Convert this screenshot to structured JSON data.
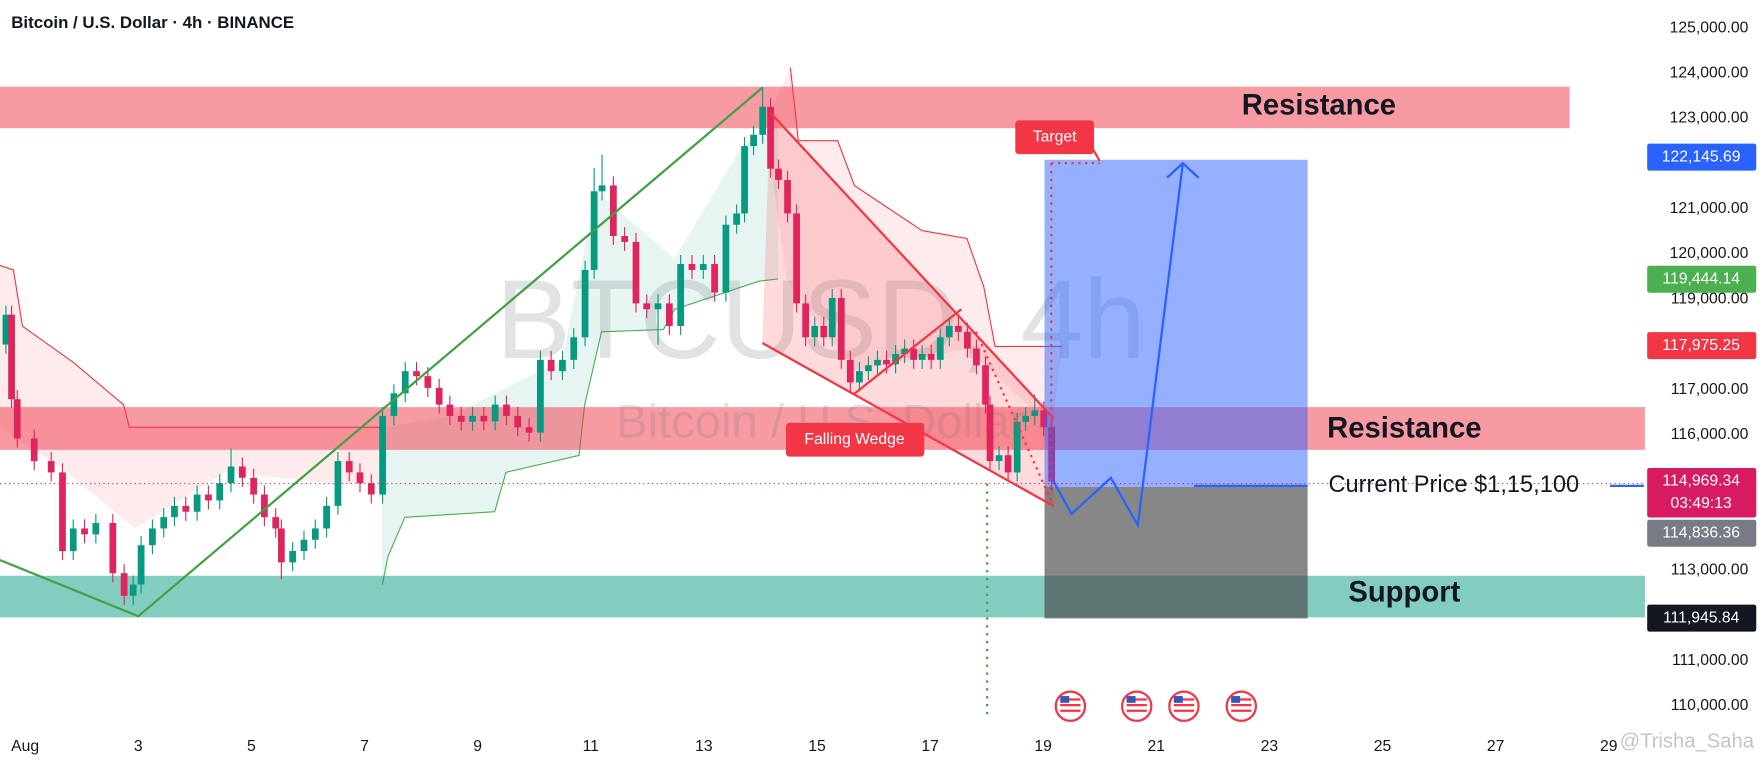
{
  "chart_data": {
    "type": "candlestick",
    "title": "Bitcoin / U.S. Dollar · 4h · BINANCE",
    "watermark": [
      "BTCUSD, 4h",
      "Bitcoin / U.S. Dollar"
    ],
    "author": "@Trisha_Saha",
    "annotations": [
      "Resistance",
      "Resistance",
      "Support",
      "Current Price $1,15,100",
      "Target",
      "Falling Wedge"
    ],
    "up_color": "#089981",
    "down_color": "#e0245e",
    "grid": false,
    "xlim": [
      0.555,
      29.6
    ],
    "xticks": [
      {
        "value": 1,
        "label": "Aug"
      },
      3,
      5,
      7,
      9,
      11,
      13,
      15,
      17,
      19,
      21,
      23,
      25,
      27,
      29
    ],
    "ylim": [
      109500,
      125620
    ],
    "yticks": [
      {
        "value": 125000,
        "label": "125,000.00"
      },
      {
        "value": 124000,
        "label": "124,000.00"
      },
      {
        "value": 123000,
        "label": "123,000.00"
      },
      {
        "value": 121000,
        "label": "121,000.00"
      },
      {
        "value": 120000,
        "label": "120,000.00"
      },
      {
        "value": 119000,
        "label": "119,000.00"
      },
      {
        "value": 117000,
        "label": "117,000.00"
      },
      {
        "value": 116000,
        "label": "116,000.00"
      },
      {
        "value": 113000,
        "label": "113,000.00"
      },
      {
        "value": 111000,
        "label": "111,000.00"
      },
      {
        "value": 110000,
        "label": "110,000.00"
      }
    ],
    "price_markers": [
      {
        "value": 122145.69,
        "label": "122,145.69",
        "color": "#2962ff"
      },
      {
        "value": 119444.14,
        "label": "119,444.14",
        "color": "#4caf50"
      },
      {
        "value": 117975.25,
        "label": "117,975.25",
        "color": "#f23645"
      },
      {
        "value": 114969.34,
        "label": "114,969.34",
        "color": "#d81b60"
      },
      {
        "value": 114836.36,
        "label": "114,836.36",
        "color": "#787b86"
      },
      {
        "value": 111945.84,
        "label": "111,945.84",
        "color": "#131722"
      }
    ],
    "countdown": "03:49:13",
    "x": [
      0.66,
      0.76,
      0.86,
      1.16,
      1.46,
      1.66,
      1.85,
      2.05,
      2.25,
      2.55,
      2.75,
      2.91,
      3.05,
      3.25,
      3.45,
      3.64,
      3.84,
      4.04,
      4.24,
      4.44,
      4.64,
      4.84,
      5.04,
      5.23,
      5.43,
      5.53,
      5.73,
      5.93,
      6.13,
      6.33,
      6.53,
      6.73,
      6.92,
      7.12,
      7.32,
      7.52,
      7.72,
      7.92,
      8.12,
      8.32,
      8.51,
      8.71,
      8.91,
      9.11,
      9.31,
      9.51,
      9.71,
      9.91,
      10.11,
      10.3,
      10.5,
      10.7,
      10.9,
      11.06,
      11.2,
      11.4,
      11.6,
      11.8,
      11.99,
      12.19,
      12.39,
      12.59,
      12.79,
      12.99,
      13.19,
      13.39,
      13.58,
      13.72,
      13.88,
      14.04,
      14.18,
      14.32,
      14.48,
      14.64,
      14.8,
      14.96,
      15.12,
      15.27,
      15.43,
      15.59,
      15.75,
      15.91,
      16.07,
      16.23,
      16.39,
      16.55,
      16.71,
      16.86,
      17.02,
      17.18,
      17.34,
      17.5,
      17.66,
      17.82,
      17.98,
      18.06,
      18.22,
      18.38,
      18.54,
      18.69,
      18.85,
      19.01,
      19.15
    ],
    "open": [
      118000,
      118660,
      116790,
      115920,
      115420,
      115170,
      113430,
      113930,
      113800,
      114050,
      112940,
      112440,
      112690,
      113560,
      113930,
      114180,
      114430,
      114300,
      114680,
      114550,
      114930,
      115300,
      115050,
      114680,
      114180,
      113930,
      113180,
      113430,
      113680,
      113930,
      114430,
      115420,
      115170,
      114930,
      114680,
      116420,
      116920,
      117410,
      117300,
      117040,
      116670,
      116420,
      116290,
      116420,
      116300,
      116670,
      116420,
      116170,
      116050,
      117660,
      117410,
      117660,
      118160,
      119650,
      121390,
      121520,
      120400,
      120270,
      118910,
      118780,
      118910,
      118410,
      119780,
      119650,
      119780,
      119150,
      120650,
      120900,
      122390,
      122640,
      123260,
      121890,
      121640,
      120900,
      118910,
      118160,
      118410,
      118160,
      119030,
      117660,
      117160,
      117410,
      117540,
      117660,
      117560,
      117790,
      117910,
      117660,
      117790,
      117660,
      118160,
      118410,
      118280,
      117910,
      117540,
      116670,
      115420,
      115550,
      115170,
      116290,
      116420,
      116540,
      116170
    ],
    "high": [
      118860,
      118860,
      116990,
      116120,
      115620,
      115370,
      114130,
      114130,
      114250,
      114250,
      113140,
      112890,
      113760,
      114130,
      114380,
      114630,
      114630,
      114880,
      114880,
      115130,
      115700,
      115500,
      115250,
      114880,
      114380,
      114130,
      113630,
      113880,
      114130,
      114630,
      115620,
      115620,
      115370,
      115130,
      116620,
      117120,
      117610,
      117610,
      117500,
      117240,
      116870,
      116620,
      116620,
      116620,
      116870,
      116870,
      116620,
      116370,
      117860,
      117860,
      117860,
      118360,
      119850,
      121900,
      122200,
      121720,
      120600,
      120470,
      119110,
      119110,
      119110,
      119980,
      119980,
      119980,
      119980,
      120850,
      121100,
      122590,
      122840,
      123700,
      123460,
      122090,
      121840,
      121100,
      119110,
      118610,
      118610,
      119230,
      119230,
      117860,
      117610,
      117740,
      117860,
      117860,
      117990,
      118110,
      118110,
      117990,
      117990,
      118360,
      118610,
      118610,
      118480,
      118110,
      117740,
      116870,
      115750,
      115750,
      116490,
      116620,
      116900,
      116740,
      116370
    ],
    "low": [
      117800,
      116590,
      115720,
      115220,
      114970,
      113230,
      113230,
      113600,
      113600,
      112740,
      112240,
      112240,
      112490,
      113360,
      113730,
      113980,
      114100,
      114100,
      114350,
      114350,
      114730,
      114850,
      114480,
      113980,
      113730,
      112800,
      112980,
      113230,
      113480,
      113730,
      114230,
      114970,
      114730,
      114480,
      114480,
      116220,
      116720,
      117100,
      116840,
      116470,
      116220,
      116090,
      116090,
      116100,
      116100,
      116220,
      115970,
      115850,
      115850,
      117210,
      117210,
      117460,
      117960,
      119450,
      121190,
      120200,
      120070,
      118710,
      118580,
      118000,
      118210,
      118210,
      119450,
      119450,
      118950,
      118950,
      120450,
      120700,
      122190,
      122440,
      121690,
      121440,
      120700,
      118710,
      117960,
      117960,
      117960,
      117960,
      117460,
      116960,
      116960,
      117210,
      117340,
      117360,
      117360,
      117590,
      117460,
      117460,
      117460,
      117460,
      117960,
      118080,
      117710,
      117340,
      116470,
      115220,
      115220,
      114970,
      114970,
      116090,
      116220,
      115970,
      114770
    ],
    "close": [
      118660,
      116790,
      115920,
      115420,
      115170,
      113430,
      113930,
      113800,
      114050,
      112940,
      112440,
      112690,
      113560,
      113930,
      114180,
      114430,
      114300,
      114680,
      114550,
      114930,
      115300,
      115050,
      114680,
      114180,
      113930,
      113180,
      113430,
      113680,
      113930,
      114430,
      115420,
      115170,
      114930,
      114680,
      116420,
      116920,
      117410,
      117300,
      117040,
      116670,
      116420,
      116290,
      116420,
      116300,
      116670,
      116420,
      116170,
      116050,
      117660,
      117410,
      117660,
      118160,
      119650,
      121390,
      121520,
      120400,
      120270,
      118910,
      118780,
      118910,
      118410,
      119780,
      119650,
      119780,
      119150,
      120650,
      120900,
      122390,
      122640,
      123260,
      121890,
      121640,
      120900,
      118910,
      118160,
      118410,
      118160,
      119030,
      117660,
      117160,
      117410,
      117540,
      117660,
      117560,
      117790,
      117910,
      117660,
      117790,
      117660,
      118160,
      118410,
      118280,
      117910,
      117540,
      116670,
      115420,
      115550,
      115170,
      116290,
      116420,
      116540,
      116170,
      114970
    ]
  }
}
